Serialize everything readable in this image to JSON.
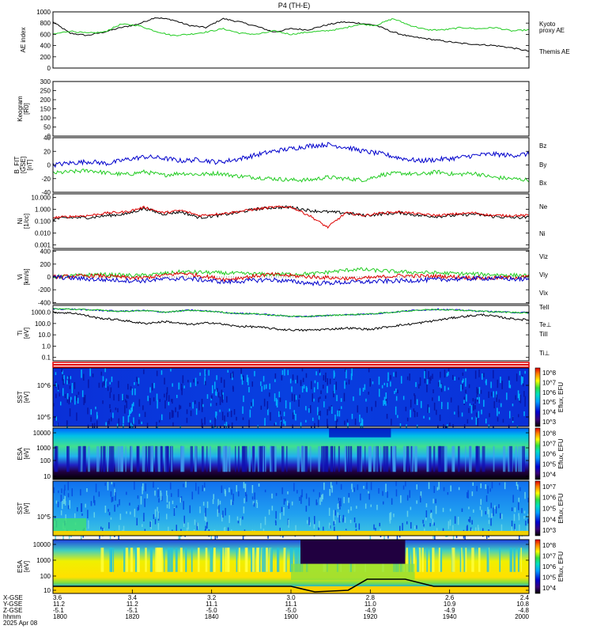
{
  "title": "P4  (TH-E)",
  "colors": {
    "ae_themis": "#000000",
    "ae_kyoto": "#22cc22",
    "bz": "#dd0000",
    "by": "#22cc22",
    "bx": "#0000cc",
    "ne": "#dd0000",
    "ni": "#000000",
    "te": "#000000",
    "ti_par": "#22cc22",
    "ti_perp": "#0000cc",
    "te_perp": "#dd0000"
  },
  "chart_data": [
    {
      "type": "line",
      "id": "ae",
      "ylabel": "AE index",
      "ylim": [
        0,
        1000
      ],
      "yticks": [
        "0",
        "200",
        "400",
        "600",
        "800",
        "1000"
      ],
      "legend": [
        "Kyoto",
        "proxy AE",
        "Themis AE"
      ],
      "series": [
        {
          "name": "Themis AE",
          "values": [
            820,
            620,
            580,
            640,
            720,
            780,
            900,
            860,
            760,
            720,
            880,
            820,
            740,
            640,
            700,
            680,
            760,
            820,
            800,
            760,
            640,
            560,
            520,
            480,
            440,
            420,
            400,
            360,
            300
          ]
        },
        {
          "name": "Kyoto proxy AE",
          "values": [
            600,
            660,
            620,
            640,
            780,
            760,
            660,
            580,
            600,
            640,
            700,
            620,
            600,
            660,
            600,
            640,
            660,
            700,
            780,
            760,
            880,
            760,
            680,
            680,
            720,
            700,
            720,
            660,
            680
          ]
        }
      ]
    },
    {
      "type": "heatmap",
      "id": "keogram",
      "ylabel": "Keogram",
      "ylabel2": "[R0]",
      "ylim": [
        0,
        300
      ],
      "yticks": [
        "0",
        "50",
        "100",
        "150",
        "200",
        "250",
        "300"
      ]
    },
    {
      "type": "line",
      "id": "bfield",
      "ylabel": "B_FIT",
      "ylabel2": "[GSE]",
      "ylabel3": "[nT]",
      "ylim": [
        -40,
        40
      ],
      "yticks": [
        "-40",
        "-20",
        "0",
        "20",
        "40"
      ],
      "legend": [
        "Bz",
        "By",
        "Bx"
      ],
      "series": [
        {
          "name": "Bz",
          "values": [
            0,
            3,
            5,
            2,
            8,
            12,
            10,
            6,
            8,
            4,
            8,
            14,
            20,
            24,
            28,
            30,
            26,
            20,
            16,
            10,
            6,
            8,
            10,
            14,
            16,
            14,
            16
          ]
        },
        {
          "name": "By",
          "values": [
            -12,
            -10,
            -8,
            -12,
            -14,
            -10,
            -15,
            -12,
            -14,
            -12,
            -16,
            -18,
            -20,
            -22,
            -22,
            -18,
            -20,
            -22,
            -14,
            -12,
            -14,
            -10,
            -14,
            -12,
            -18,
            -20,
            -22
          ]
        }
      ]
    },
    {
      "type": "line",
      "id": "density",
      "ylabel": "Ni",
      "ylabel2": "[1/cc]",
      "log": true,
      "yticks": [
        "0.001",
        "0.010",
        "0.100",
        "1.000",
        "10.000"
      ],
      "legend": [
        "Ne",
        "Ni"
      ],
      "series": [
        {
          "name": "Ne",
          "values": [
            0.2,
            0.25,
            0.3,
            0.5,
            0.6,
            1.5,
            0.5,
            0.8,
            0.3,
            0.4,
            0.6,
            1.0,
            1.5,
            1.6,
            0.3,
            0.03,
            0.5,
            0.3,
            0.5,
            0.6,
            0.4,
            0.3,
            0.4,
            0.5,
            0.3,
            0.3,
            0.3
          ]
        },
        {
          "name": "Ni",
          "values": [
            0.15,
            0.2,
            0.2,
            0.3,
            0.4,
            1.2,
            0.4,
            0.6,
            0.2,
            0.3,
            0.5,
            1.0,
            1.4,
            1.5,
            0.8,
            0.6,
            0.5,
            0.3,
            0.4,
            0.5,
            0.3,
            0.25,
            0.3,
            0.4,
            0.25,
            0.2,
            0.2
          ]
        }
      ]
    },
    {
      "type": "line",
      "id": "velocity",
      "ylabel": "Vi",
      "ylabel2": "[km/s]",
      "ylim": [
        -400,
        400
      ],
      "yticks": [
        "-400",
        "-200",
        "0",
        "200",
        "400"
      ],
      "legend": [
        "Viz",
        "Viy",
        "Vix"
      ],
      "series": [
        {
          "name": "Viz",
          "values": [
            0,
            20,
            -20,
            60,
            -40,
            40,
            0,
            -30,
            20,
            10,
            -20,
            0
          ]
        },
        {
          "name": "Viy",
          "values": [
            0,
            40,
            20,
            80,
            60,
            40,
            50,
            120,
            80,
            60,
            40,
            20
          ]
        },
        {
          "name": "Vix",
          "values": [
            0,
            -40,
            -60,
            -20,
            -80,
            -40,
            -100,
            -80,
            -60,
            -40,
            -20,
            -40
          ]
        }
      ]
    },
    {
      "type": "line",
      "id": "temperature",
      "ylabel": "Ti",
      "ylabel2": "[eV]",
      "log": true,
      "yticks": [
        "0.1",
        "1.0",
        "10.0",
        "100.0",
        "1000.0"
      ],
      "legend": [
        "TeII",
        "Te⊥",
        "TiII",
        "Ti⊥"
      ],
      "series": [
        {
          "name": "Te",
          "values": [
            1000,
            800,
            300,
            200,
            100,
            150,
            80,
            120,
            60,
            50,
            30,
            25,
            30,
            40,
            30,
            60,
            100,
            200,
            400,
            600,
            300,
            200
          ]
        },
        {
          "name": "Ti",
          "values": [
            2000,
            1800,
            1500,
            1200,
            1400,
            1000,
            1500,
            1200,
            800,
            700,
            500,
            400,
            500,
            600,
            700,
            1000,
            1500,
            1800,
            1500,
            1200,
            1000,
            900
          ]
        }
      ]
    },
    {
      "type": "heatmap",
      "id": "sst_i",
      "ylabel": "SST",
      "ylabel2": "[eV]",
      "cb_label": "Eflux, EFU",
      "yticks": [
        "10^5",
        "10^6"
      ],
      "cb_ticks": [
        "10^3",
        "10^4",
        "10^5",
        "10^6",
        "10^7",
        "10^8"
      ]
    },
    {
      "type": "heatmap",
      "id": "esa_i",
      "ylabel": "ESA",
      "ylabel2": "[eV]",
      "cb_label": "Eflux, EFU",
      "yticks": [
        "10",
        "100",
        "1000",
        "10000"
      ],
      "cb_ticks": [
        "10^4",
        "10^5",
        "10^6",
        "10^7",
        "10^8"
      ]
    },
    {
      "type": "heatmap",
      "id": "sst_e",
      "ylabel": "SST",
      "ylabel2": "[eV]",
      "cb_label": "Eflux, EFU",
      "yticks": [
        "10^5"
      ],
      "cb_ticks": [
        "10^3",
        "10^4",
        "10^5",
        "10^6",
        "10^7"
      ]
    },
    {
      "type": "heatmap",
      "id": "esa_e",
      "ylabel": "ESA",
      "ylabel2": "[eV]",
      "cb_label": "Eflux, EFU",
      "yticks": [
        "10",
        "100",
        "1000",
        "10000"
      ],
      "cb_ticks": [
        "10^4",
        "10^5",
        "10^6",
        "10^7",
        "10^8"
      ]
    }
  ],
  "xaxis": {
    "row_labels": [
      "X-GSE",
      "Y-GSE",
      "Z-GSE",
      "hhmm",
      "2025 Apr 08"
    ],
    "ticks": [
      {
        "x": "3.6",
        "y": "11.2",
        "z": "-5.1",
        "t": "1800"
      },
      {
        "x": "3.4",
        "y": "11.2",
        "z": "-5.1",
        "t": "1820"
      },
      {
        "x": "3.2",
        "y": "11.1",
        "z": "-5.0",
        "t": "1840"
      },
      {
        "x": "3.0",
        "y": "11.1",
        "z": "-5.0",
        "t": "1900"
      },
      {
        "x": "2.8",
        "y": "11.0",
        "z": "-4.9",
        "t": "1920"
      },
      {
        "x": "2.6",
        "y": "10.9",
        "z": "-4.9",
        "t": "1940"
      },
      {
        "x": "2.4",
        "y": "10.8",
        "z": "-4.8",
        "t": "2000"
      }
    ]
  }
}
